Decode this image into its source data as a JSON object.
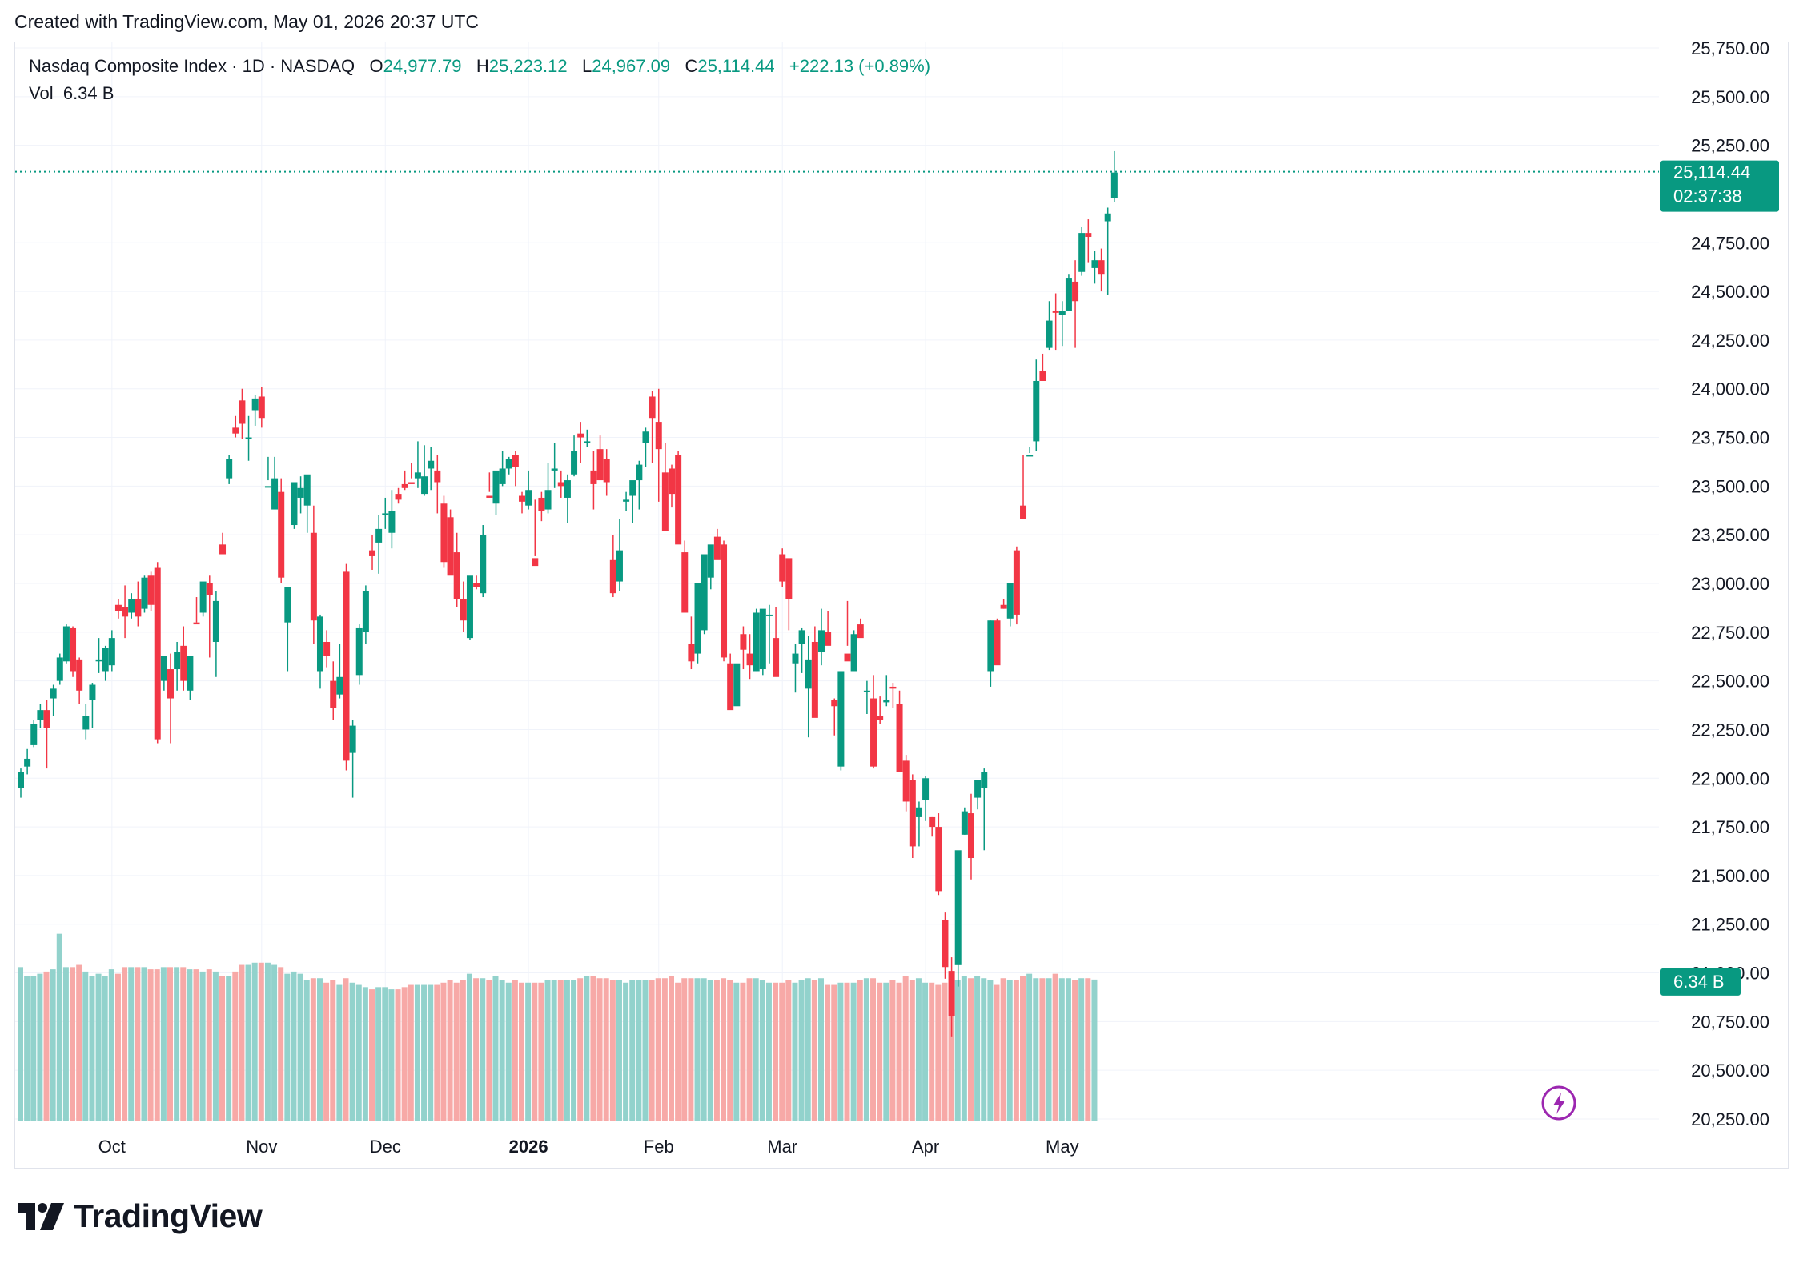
{
  "header": {
    "created_text": "Created with TradingView.com, May 01, 2026 20:37 UTC"
  },
  "legend": {
    "title": "Nasdaq Composite Index · 1D · NASDAQ",
    "o_label": "O",
    "o_value": "24,977.79",
    "h_label": "H",
    "h_value": "25,223.12",
    "l_label": "L",
    "l_value": "24,967.09",
    "c_label": "C",
    "c_value": "25,114.44",
    "change": "+222.13 (+0.89%)",
    "vol_label": "Vol",
    "vol_value": "6.34 B"
  },
  "price_badge": {
    "price": "25,114.44",
    "countdown": "02:37:38"
  },
  "volume_badge": "6.34 B",
  "footer": {
    "brand": "TradingView"
  },
  "colors": {
    "up": "#089981",
    "down": "#f23645",
    "up_vol": "#92d2cc",
    "down_vol": "#f7a9a7",
    "grid": "#f0f3fa"
  },
  "icons": [
    "lightning-icon",
    "tradingview-logo-icon"
  ],
  "chart_data": {
    "type": "candlestick",
    "title": "Nasdaq Composite Index · 1D · NASDAQ",
    "y_axis": {
      "side": "right",
      "ylim": [
        20250,
        25750
      ],
      "ticks": [
        20250,
        20500,
        20750,
        21000,
        21250,
        21500,
        21750,
        22000,
        22250,
        22500,
        22750,
        23000,
        23250,
        23500,
        23750,
        24000,
        24250,
        24500,
        24750,
        25000,
        25250,
        25500,
        25750
      ],
      "tick_labels": [
        "20,250.00",
        "20,500.00",
        "20,750.00",
        "21,000.00",
        "21,250.00",
        "21,500.00",
        "21,750.00",
        "22,000.00",
        "22,250.00",
        "22,500.00",
        "22,750.00",
        "23,000.00",
        "23,250.00",
        "23,500.00",
        "23,750.00",
        "24,000.00",
        "24,250.00",
        "24,500.00",
        "24,750.00",
        "25,000.00",
        "25,250.00",
        "25,500.00",
        "25,750.00"
      ]
    },
    "x_axis": {
      "labels": [
        {
          "text": "Oct",
          "index": 14,
          "bold": false
        },
        {
          "text": "Nov",
          "index": 37,
          "bold": false
        },
        {
          "text": "Dec",
          "index": 56,
          "bold": false
        },
        {
          "text": "2026",
          "index": 78,
          "bold": true
        },
        {
          "text": "Feb",
          "index": 98,
          "bold": false
        },
        {
          "text": "Mar",
          "index": 117,
          "bold": false
        },
        {
          "text": "Apr",
          "index": 139,
          "bold": false
        },
        {
          "text": "May",
          "index": 160,
          "bold": false
        }
      ]
    },
    "grid": true,
    "last_price": 25114.44,
    "candles_ohlc": [
      [
        21950,
        22050,
        21900,
        22030
      ],
      [
        22060,
        22150,
        22020,
        22100
      ],
      [
        22170,
        22300,
        22160,
        22280
      ],
      [
        22300,
        22380,
        22260,
        22350
      ],
      [
        22350,
        22400,
        22050,
        22260
      ],
      [
        22410,
        22480,
        22320,
        22460
      ],
      [
        22500,
        22640,
        22480,
        22620
      ],
      [
        22600,
        22790,
        22590,
        22780
      ],
      [
        22770,
        22780,
        22520,
        22550
      ],
      [
        22610,
        22620,
        22380,
        22450
      ],
      [
        22250,
        22380,
        22200,
        22320
      ],
      [
        22400,
        22490,
        22260,
        22480
      ],
      [
        22600,
        22720,
        22540,
        22610
      ],
      [
        22550,
        22680,
        22500,
        22670
      ],
      [
        22580,
        22760,
        22550,
        22720
      ],
      [
        22890,
        22920,
        22820,
        22860
      ],
      [
        22880,
        22990,
        22720,
        22830
      ],
      [
        22850,
        22950,
        22820,
        22920
      ],
      [
        22920,
        23010,
        22780,
        22830
      ],
      [
        22870,
        23040,
        22850,
        23030
      ],
      [
        23040,
        23060,
        22860,
        22890
      ],
      [
        23080,
        23110,
        22180,
        22200
      ],
      [
        22500,
        22630,
        22450,
        22630
      ],
      [
        22560,
        22640,
        22180,
        22410
      ],
      [
        22560,
        22700,
        22450,
        22650
      ],
      [
        22680,
        22780,
        22450,
        22500
      ],
      [
        22450,
        22630,
        22400,
        22630
      ],
      [
        22800,
        22930,
        22800,
        22790
      ],
      [
        22850,
        23000,
        22830,
        23010
      ],
      [
        23000,
        23040,
        22620,
        22940
      ],
      [
        22700,
        22960,
        22520,
        22910
      ],
      [
        23200,
        23260,
        23150,
        23150
      ],
      [
        23540,
        23660,
        23510,
        23640
      ],
      [
        23800,
        23860,
        23750,
        23770
      ],
      [
        23940,
        24000,
        23740,
        23820
      ],
      [
        23750,
        23860,
        23630,
        23750
      ],
      [
        23890,
        23970,
        23810,
        23950
      ],
      [
        23960,
        24010,
        23800,
        23850
      ],
      [
        23500,
        23650,
        23530,
        23500
      ],
      [
        23380,
        23650,
        23420,
        23540
      ],
      [
        23470,
        23540,
        23000,
        23030
      ],
      [
        22800,
        22920,
        22550,
        22980
      ],
      [
        23300,
        23490,
        23280,
        23520
      ],
      [
        23440,
        23550,
        23360,
        23490
      ],
      [
        23400,
        23550,
        23260,
        23560
      ],
      [
        23260,
        23400,
        22690,
        22810
      ],
      [
        22550,
        22840,
        22460,
        22830
      ],
      [
        22700,
        22760,
        22570,
        22630
      ],
      [
        22500,
        22600,
        22300,
        22360
      ],
      [
        22430,
        22690,
        22410,
        22520
      ],
      [
        23060,
        23100,
        22040,
        22090
      ],
      [
        22130,
        22300,
        21900,
        22270
      ],
      [
        22530,
        22790,
        22480,
        22770
      ],
      [
        22750,
        22990,
        22690,
        22960
      ],
      [
        23170,
        23250,
        23070,
        23140
      ],
      [
        23210,
        23350,
        23050,
        23280
      ],
      [
        23360,
        23440,
        23280,
        23360
      ],
      [
        23260,
        23480,
        23180,
        23370
      ],
      [
        23460,
        23490,
        23410,
        23430
      ],
      [
        23510,
        23580,
        23480,
        23490
      ],
      [
        23520,
        23620,
        23540,
        23510
      ],
      [
        23540,
        23730,
        23490,
        23570
      ],
      [
        23460,
        23710,
        23450,
        23550
      ],
      [
        23590,
        23700,
        23480,
        23630
      ],
      [
        23580,
        23660,
        23360,
        23520
      ],
      [
        23410,
        23450,
        23080,
        23110
      ],
      [
        23340,
        23380,
        23130,
        23040
      ],
      [
        23160,
        23260,
        22880,
        22920
      ],
      [
        22920,
        23010,
        22750,
        22810
      ],
      [
        22720,
        22940,
        22710,
        23040
      ],
      [
        23000,
        23040,
        22970,
        22980
      ],
      [
        22950,
        23300,
        22930,
        23250
      ],
      [
        23450,
        23570,
        23470,
        23440
      ],
      [
        23410,
        23530,
        23350,
        23580
      ],
      [
        23510,
        23680,
        23500,
        23590
      ],
      [
        23590,
        23650,
        23560,
        23640
      ],
      [
        23660,
        23680,
        23500,
        23600
      ],
      [
        23450,
        23470,
        23360,
        23420
      ],
      [
        23400,
        23580,
        23380,
        23480
      ],
      [
        23130,
        23430,
        23140,
        23090
      ],
      [
        23440,
        23470,
        23320,
        23370
      ],
      [
        23380,
        23620,
        23360,
        23480
      ],
      [
        23580,
        23720,
        23490,
        23590
      ],
      [
        23520,
        23580,
        23440,
        23500
      ],
      [
        23440,
        23560,
        23310,
        23530
      ],
      [
        23560,
        23760,
        23550,
        23680
      ],
      [
        23770,
        23830,
        23620,
        23750
      ],
      [
        23720,
        23790,
        23700,
        23730
      ],
      [
        23580,
        23680,
        23380,
        23510
      ],
      [
        23690,
        23760,
        23560,
        23530
      ],
      [
        23640,
        23690,
        23450,
        23520
      ],
      [
        23120,
        23250,
        22930,
        22950
      ],
      [
        23010,
        23330,
        22960,
        23170
      ],
      [
        23420,
        23470,
        23370,
        23430
      ],
      [
        23450,
        23510,
        23310,
        23530
      ],
      [
        23530,
        23630,
        23380,
        23610
      ],
      [
        23720,
        23800,
        23600,
        23780
      ],
      [
        23960,
        23990,
        23620,
        23850
      ],
      [
        23830,
        24000,
        23420,
        23690
      ],
      [
        23570,
        23720,
        23360,
        23270
      ],
      [
        23590,
        23610,
        23390,
        23460
      ],
      [
        23660,
        23680,
        23260,
        23200
      ],
      [
        23160,
        23220,
        22940,
        22850
      ],
      [
        22690,
        22830,
        22560,
        22600
      ],
      [
        22640,
        22960,
        22590,
        23000
      ],
      [
        22760,
        23010,
        22740,
        23150
      ],
      [
        23030,
        23180,
        22970,
        23200
      ],
      [
        23240,
        23280,
        23210,
        23120
      ],
      [
        23200,
        23220,
        22600,
        22620
      ],
      [
        22590,
        22640,
        22420,
        22350
      ],
      [
        22370,
        22510,
        22400,
        22590
      ],
      [
        22740,
        22780,
        22560,
        22660
      ],
      [
        22640,
        22740,
        22510,
        22580
      ],
      [
        22550,
        22870,
        22550,
        22850
      ],
      [
        22560,
        22810,
        22530,
        22870
      ],
      [
        22840,
        22890,
        22590,
        22840
      ],
      [
        22720,
        22880,
        22590,
        22520
      ],
      [
        23150,
        23180,
        22980,
        23010
      ],
      [
        23130,
        23060,
        22760,
        22920
      ],
      [
        22590,
        22690,
        22440,
        22640
      ],
      [
        22690,
        22770,
        22540,
        22760
      ],
      [
        22460,
        22730,
        22210,
        22610
      ],
      [
        22700,
        22780,
        22340,
        22310
      ],
      [
        22650,
        22870,
        22580,
        22760
      ],
      [
        22750,
        22860,
        22720,
        22680
      ],
      [
        22400,
        22410,
        22220,
        22370
      ],
      [
        22060,
        22370,
        22040,
        22550
      ],
      [
        22640,
        22910,
        22680,
        22600
      ],
      [
        22550,
        22760,
        22600,
        22740
      ],
      [
        22790,
        22820,
        22760,
        22720
      ],
      [
        22450,
        22500,
        22330,
        22450
      ],
      [
        22410,
        22530,
        22050,
        22060
      ],
      [
        22320,
        22420,
        22280,
        22300
      ],
      [
        22390,
        22530,
        22370,
        22400
      ],
      [
        22470,
        22490,
        22360,
        22460
      ],
      [
        22380,
        22450,
        22220,
        22030
      ],
      [
        22090,
        22120,
        21830,
        21880
      ],
      [
        21990,
        22020,
        21590,
        21650
      ],
      [
        21800,
        21880,
        21650,
        21850
      ],
      [
        21890,
        22010,
        21780,
        22000
      ],
      [
        21800,
        21800,
        21700,
        21750
      ],
      [
        21750,
        21820,
        21400,
        21420
      ],
      [
        21270,
        21310,
        20970,
        21030
      ],
      [
        21010,
        21080,
        20670,
        20780
      ],
      [
        21040,
        21600,
        20930,
        21630
      ],
      [
        21710,
        21850,
        21710,
        21830
      ],
      [
        21820,
        21920,
        21480,
        21590
      ],
      [
        21900,
        21990,
        21840,
        21990
      ],
      [
        21950,
        22050,
        21630,
        22030
      ],
      [
        22550,
        22810,
        22470,
        22810
      ],
      [
        22810,
        22820,
        22680,
        22580
      ],
      [
        22890,
        22920,
        22870,
        22870
      ],
      [
        22820,
        23000,
        22780,
        23000
      ],
      [
        23170,
        23190,
        22790,
        22840
      ],
      [
        23400,
        23660,
        23380,
        23330
      ],
      [
        23660,
        23700,
        23670,
        23660
      ],
      [
        23730,
        24150,
        23680,
        24040
      ],
      [
        24090,
        24180,
        24070,
        24040
      ],
      [
        24210,
        24450,
        24200,
        24350
      ],
      [
        24400,
        24490,
        24200,
        24390
      ],
      [
        24380,
        24450,
        24220,
        24400
      ],
      [
        24400,
        24590,
        24400,
        24570
      ],
      [
        24550,
        24660,
        24210,
        24450
      ],
      [
        24600,
        24830,
        24580,
        24800
      ],
      [
        24800,
        24870,
        24650,
        24780
      ],
      [
        24620,
        24710,
        24540,
        24660
      ],
      [
        24660,
        24720,
        24500,
        24590
      ],
      [
        24860,
        24930,
        24480,
        24900
      ],
      [
        24980,
        25220,
        24960,
        25110
      ]
    ],
    "volume_billions": [
      6.9,
      6.5,
      6.5,
      6.6,
      6.7,
      6.8,
      8.4,
      6.9,
      6.9,
      7.0,
      6.7,
      6.5,
      6.6,
      6.5,
      6.8,
      6.6,
      6.9,
      6.9,
      6.9,
      6.9,
      6.8,
      6.8,
      6.9,
      6.9,
      6.9,
      6.9,
      6.8,
      6.8,
      6.7,
      6.8,
      6.7,
      6.5,
      6.5,
      6.7,
      7.0,
      7.0,
      7.1,
      7.1,
      7.1,
      7.0,
      6.9,
      6.6,
      6.7,
      6.6,
      6.3,
      6.4,
      6.4,
      6.2,
      6.3,
      6.1,
      6.4,
      6.2,
      6.1,
      6.0,
      5.9,
      6.0,
      6.0,
      5.9,
      5.9,
      6.0,
      6.1,
      6.1,
      6.1,
      6.1,
      6.1,
      6.2,
      6.3,
      6.2,
      6.3,
      6.6,
      6.4,
      6.4,
      6.3,
      6.5,
      6.3,
      6.2,
      6.3,
      6.2,
      6.2,
      6.2,
      6.2,
      6.3,
      6.3,
      6.3,
      6.3,
      6.3,
      6.4,
      6.5,
      6.5,
      6.4,
      6.4,
      6.3,
      6.3,
      6.2,
      6.3,
      6.3,
      6.3,
      6.3,
      6.4,
      6.4,
      6.5,
      6.2,
      6.4,
      6.4,
      6.4,
      6.4,
      6.3,
      6.3,
      6.4,
      6.3,
      6.2,
      6.2,
      6.4,
      6.4,
      6.3,
      6.2,
      6.2,
      6.2,
      6.3,
      6.2,
      6.3,
      6.4,
      6.3,
      6.4,
      6.1,
      6.1,
      6.2,
      6.2,
      6.2,
      6.3,
      6.4,
      6.4,
      6.2,
      6.2,
      6.3,
      6.2,
      6.5,
      6.3,
      6.4,
      6.2,
      6.2,
      6.1,
      6.2,
      6.2,
      6.3,
      6.5,
      6.4,
      6.5,
      6.4,
      6.3,
      6.1,
      6.4,
      6.3,
      6.3,
      6.5,
      6.6,
      6.4,
      6.4,
      6.4,
      6.6,
      6.4,
      6.4,
      6.3,
      6.4,
      6.4,
      6.34
    ]
  }
}
